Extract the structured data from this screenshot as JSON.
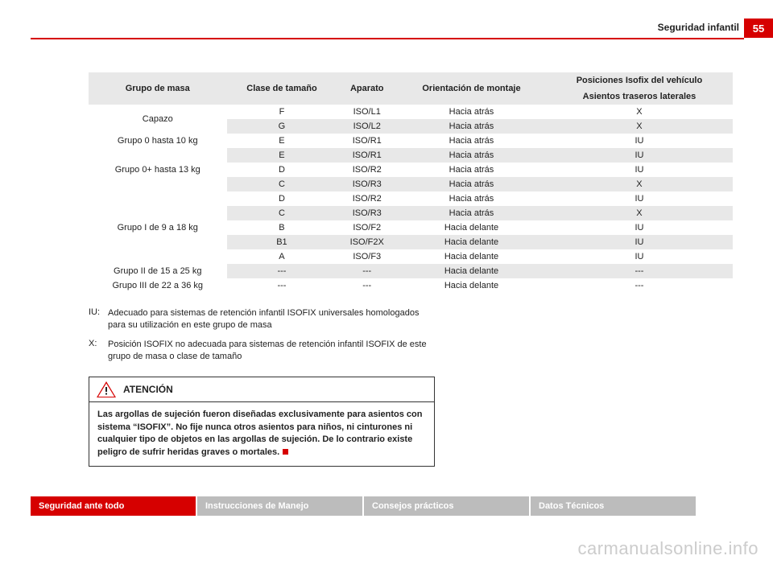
{
  "header": {
    "page_number": "55",
    "section_title": "Seguridad infantil"
  },
  "table": {
    "headers": {
      "c1": "Grupo de masa",
      "c2": "Clase de tamaño",
      "c3": "Aparato",
      "c4": "Orientación de montaje",
      "c5_top": "Posiciones Isofix del vehículo",
      "c5_bot": "Asientos traseros laterales"
    },
    "rows": [
      {
        "g": "Capazo",
        "gspan": 2,
        "alt": false,
        "c2": "F",
        "c3": "ISO/L1",
        "c4": "Hacia atrás",
        "c5": "X"
      },
      {
        "alt": true,
        "c2": "G",
        "c3": "ISO/L2",
        "c4": "Hacia atrás",
        "c5": "X"
      },
      {
        "g": "Grupo 0 hasta 10 kg",
        "gspan": 1,
        "alt": false,
        "c2": "E",
        "c3": "ISO/R1",
        "c4": "Hacia atrás",
        "c5": "IU"
      },
      {
        "g": "Grupo 0+ hasta 13 kg",
        "gspan": 3,
        "alt": true,
        "c2": "E",
        "c3": "ISO/R1",
        "c4": "Hacia atrás",
        "c5": "IU"
      },
      {
        "alt": false,
        "c2": "D",
        "c3": "ISO/R2",
        "c4": "Hacia atrás",
        "c5": "IU"
      },
      {
        "alt": true,
        "c2": "C",
        "c3": "ISO/R3",
        "c4": "Hacia atrás",
        "c5": "X"
      },
      {
        "g": "Grupo I de 9 a 18 kg",
        "gspan": 5,
        "alt": false,
        "c2": "D",
        "c3": "ISO/R2",
        "c4": "Hacia atrás",
        "c5": "IU"
      },
      {
        "alt": true,
        "c2": "C",
        "c3": "ISO/R3",
        "c4": "Hacia atrás",
        "c5": "X"
      },
      {
        "alt": false,
        "c2": "B",
        "c3": "ISO/F2",
        "c4": "Hacia delante",
        "c5": "IU"
      },
      {
        "alt": true,
        "c2": "B1",
        "c3": "ISO/F2X",
        "c4": "Hacia delante",
        "c5": "IU"
      },
      {
        "alt": false,
        "c2": "A",
        "c3": "ISO/F3",
        "c4": "Hacia delante",
        "c5": "IU"
      },
      {
        "g": "Grupo II de 15 a 25 kg",
        "gspan": 1,
        "alt": true,
        "c2": "---",
        "c3": "---",
        "c4": "Hacia delante",
        "c5": "---"
      },
      {
        "g": "Grupo III de 22 a 36 kg",
        "gspan": 1,
        "alt": false,
        "c2": "---",
        "c3": "---",
        "c4": "Hacia delante",
        "c5": "---"
      }
    ]
  },
  "legend": {
    "iu_label": "IU:",
    "iu_text": "Adecuado para sistemas de retención infantil ISOFIX universales homologados para su utilización en este grupo de masa",
    "x_label": "X:",
    "x_text": "Posición ISOFIX no adecuada para sistemas de retención infantil ISOFIX de este grupo de masa o clase de tamaño"
  },
  "warning": {
    "title": "ATENCIÓN",
    "body": "Las argollas de sujeción fueron diseñadas exclusivamente para asientos con sistema “ISOFIX”. No fije nunca otros asientos para niños, ni cinturones ni cualquier tipo de objetos en las argollas de sujeción. De lo contrario existe peligro de sufrir heridas graves o mortales."
  },
  "nav": {
    "items": [
      "Seguridad ante todo",
      "Instrucciones de Manejo",
      "Consejos prácticos",
      "Datos Técnicos"
    ],
    "active_index": 0
  },
  "watermark": "carmanualsonline.info",
  "colors": {
    "accent": "#d60000",
    "header_alt": "#e8e8e8",
    "nav_inactive": "#bcbcbc",
    "watermark": "#cccccc"
  }
}
